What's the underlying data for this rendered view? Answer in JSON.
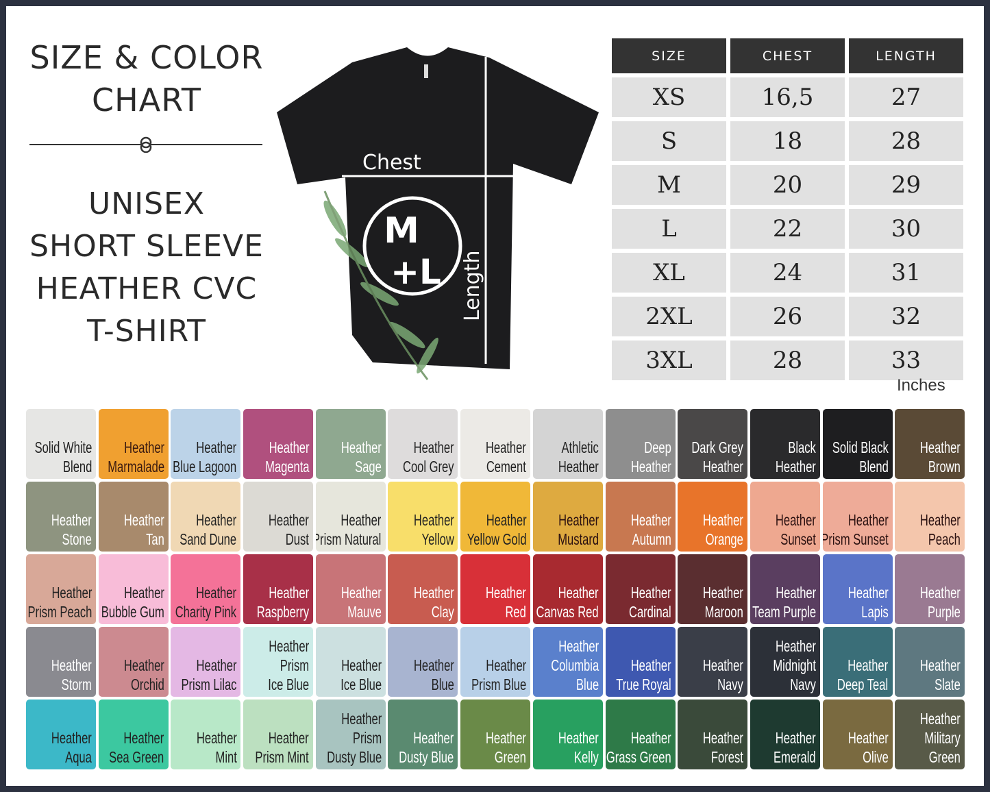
{
  "heading": {
    "line1": "SIZE & COLOR",
    "line2": "CHART",
    "product": [
      "UNISEX",
      "SHORT SLEEVE",
      "HEATHER CVC",
      "T-SHIRT"
    ]
  },
  "shirt": {
    "chest_label": "Chest",
    "length_label": "Length",
    "logo_top": "M",
    "logo_bottom": "+L"
  },
  "size_table": {
    "headers": [
      "SIZE",
      "CHEST",
      "LENGTH"
    ],
    "rows": [
      [
        "XS",
        "16,5",
        "27"
      ],
      [
        "S",
        "18",
        "28"
      ],
      [
        "M",
        "20",
        "29"
      ],
      [
        "L",
        "22",
        "30"
      ],
      [
        "XL",
        "24",
        "31"
      ],
      [
        "2XL",
        "26",
        "32"
      ],
      [
        "3XL",
        "28",
        "33"
      ]
    ],
    "units": "Inches"
  },
  "colors": [
    {
      "name": [
        "Solid White",
        "Blend"
      ],
      "hex": "#e6e6e4",
      "text": "#222"
    },
    {
      "name": [
        "Heather",
        "Marmalade"
      ],
      "hex": "#f0a030",
      "text": "#3a1a10"
    },
    {
      "name": [
        "Heather",
        "Blue Lagoon"
      ],
      "hex": "#bcd3e8",
      "text": "#222"
    },
    {
      "name": [
        "Heather",
        "Magenta"
      ],
      "hex": "#b0507e",
      "text": "#fff"
    },
    {
      "name": [
        "Heather",
        "Sage"
      ],
      "hex": "#8fa890",
      "text": "#fff"
    },
    {
      "name": [
        "Heather",
        "Cool Grey"
      ],
      "hex": "#dedcdc",
      "text": "#222"
    },
    {
      "name": [
        "Heather",
        "Cement"
      ],
      "hex": "#eceae6",
      "text": "#222"
    },
    {
      "name": [
        "Athletic",
        "Heather"
      ],
      "hex": "#d4d4d4",
      "text": "#222"
    },
    {
      "name": [
        "Deep",
        "Heather"
      ],
      "hex": "#8e8e8e",
      "text": "#fff"
    },
    {
      "name": [
        "Dark Grey",
        "Heather"
      ],
      "hex": "#4a4848",
      "text": "#fff"
    },
    {
      "name": [
        "Black",
        "Heather"
      ],
      "hex": "#2a2a2c",
      "text": "#fff"
    },
    {
      "name": [
        "Solid Black",
        "Blend"
      ],
      "hex": "#1e1e20",
      "text": "#fff"
    },
    {
      "name": [
        "Heather",
        "Brown"
      ],
      "hex": "#5a4a36",
      "text": "#fff"
    },
    {
      "name": [
        "Heather",
        "Stone"
      ],
      "hex": "#8e9480",
      "text": "#fff"
    },
    {
      "name": [
        "Heather",
        "Tan"
      ],
      "hex": "#a88a6c",
      "text": "#fff"
    },
    {
      "name": [
        "Heather",
        "Sand Dune"
      ],
      "hex": "#f0d8b4",
      "text": "#222"
    },
    {
      "name": [
        "Heather",
        "Dust"
      ],
      "hex": "#dcdad4",
      "text": "#222"
    },
    {
      "name": [
        "Heather",
        "Prism Natural"
      ],
      "hex": "#e6e6dc",
      "text": "#222"
    },
    {
      "name": [
        "Heather",
        "Yellow"
      ],
      "hex": "#f8de6a",
      "text": "#222"
    },
    {
      "name": [
        "Heather",
        "Yellow Gold"
      ],
      "hex": "#f0b838",
      "text": "#222"
    },
    {
      "name": [
        "Heather",
        "Mustard"
      ],
      "hex": "#deaa40",
      "text": "#2a1010"
    },
    {
      "name": [
        "Heather",
        "Autumn"
      ],
      "hex": "#c87850",
      "text": "#fff"
    },
    {
      "name": [
        "Heather",
        "Orange"
      ],
      "hex": "#e8742a",
      "text": "#fff"
    },
    {
      "name": [
        "Heather",
        "Sunset"
      ],
      "hex": "#eea890",
      "text": "#2a1010"
    },
    {
      "name": [
        "Heather",
        "Prism Sunset"
      ],
      "hex": "#eeab98",
      "text": "#2a1010"
    },
    {
      "name": [
        "Heather",
        "Peach"
      ],
      "hex": "#f4c6ac",
      "text": "#2a1010"
    },
    {
      "name": [
        "Heather",
        "Prism Peach"
      ],
      "hex": "#d8a898",
      "text": "#222"
    },
    {
      "name": [
        "Heather",
        "Bubble Gum"
      ],
      "hex": "#f8bcd8",
      "text": "#222"
    },
    {
      "name": [
        "Heather",
        "Charity Pink"
      ],
      "hex": "#f47298",
      "text": "#222"
    },
    {
      "name": [
        "Heather",
        "Raspberry"
      ],
      "hex": "#a83048",
      "text": "#fff"
    },
    {
      "name": [
        "Heather",
        "Mauve"
      ],
      "hex": "#c87478",
      "text": "#fff"
    },
    {
      "name": [
        "Heather",
        "Clay"
      ],
      "hex": "#c85c50",
      "text": "#fff"
    },
    {
      "name": [
        "Heather",
        "Red"
      ],
      "hex": "#d83038",
      "text": "#fff"
    },
    {
      "name": [
        "Heather",
        "Canvas Red"
      ],
      "hex": "#a82a30",
      "text": "#fff"
    },
    {
      "name": [
        "Heather",
        "Cardinal"
      ],
      "hex": "#7a2a30",
      "text": "#fff"
    },
    {
      "name": [
        "Heather",
        "Maroon"
      ],
      "hex": "#5a2e30",
      "text": "#fff"
    },
    {
      "name": [
        "Heather",
        "Team Purple"
      ],
      "hex": "#5a3e60",
      "text": "#fff"
    },
    {
      "name": [
        "Heather",
        "Lapis"
      ],
      "hex": "#5a74c8",
      "text": "#fff"
    },
    {
      "name": [
        "Heather",
        "Purple"
      ],
      "hex": "#9a7a92",
      "text": "#fff"
    },
    {
      "name": [
        "Heather",
        "Storm"
      ],
      "hex": "#8a8a90",
      "text": "#fff"
    },
    {
      "name": [
        "Heather",
        "Orchid"
      ],
      "hex": "#cc8a90",
      "text": "#222"
    },
    {
      "name": [
        "Heather",
        "Prism Lilac"
      ],
      "hex": "#e4b8e4",
      "text": "#222"
    },
    {
      "name": [
        "Heather",
        "Prism",
        "Ice Blue"
      ],
      "hex": "#ccece8",
      "text": "#222"
    },
    {
      "name": [
        "Heather",
        "Ice Blue"
      ],
      "hex": "#cce0e0",
      "text": "#222"
    },
    {
      "name": [
        "Heather",
        "Blue"
      ],
      "hex": "#a8b4d0",
      "text": "#222"
    },
    {
      "name": [
        "Heather",
        "Prism Blue"
      ],
      "hex": "#b8d0e8",
      "text": "#222"
    },
    {
      "name": [
        "Heather",
        "Columbia",
        "Blue"
      ],
      "hex": "#5a80cc",
      "text": "#fff"
    },
    {
      "name": [
        "Heather",
        "True Royal"
      ],
      "hex": "#3e58b0",
      "text": "#fff"
    },
    {
      "name": [
        "Heather",
        "Navy"
      ],
      "hex": "#3a3e48",
      "text": "#fff"
    },
    {
      "name": [
        "Heather",
        "Midnight",
        "Navy"
      ],
      "hex": "#2c3038",
      "text": "#fff"
    },
    {
      "name": [
        "Heather",
        "Deep Teal"
      ],
      "hex": "#3a6e78",
      "text": "#fff"
    },
    {
      "name": [
        "Heather",
        "Slate"
      ],
      "hex": "#5e7880",
      "text": "#fff"
    },
    {
      "name": [
        "Heather",
        "Aqua"
      ],
      "hex": "#3cb8c8",
      "text": "#222"
    },
    {
      "name": [
        "Heather",
        "Sea Green"
      ],
      "hex": "#3cc8a0",
      "text": "#222"
    },
    {
      "name": [
        "Heather",
        "Mint"
      ],
      "hex": "#b8e8c8",
      "text": "#222"
    },
    {
      "name": [
        "Heather",
        "Prism Mint"
      ],
      "hex": "#bce0c0",
      "text": "#222"
    },
    {
      "name": [
        "Heather",
        "Prism",
        "Dusty Blue"
      ],
      "hex": "#a8c4c0",
      "text": "#222"
    },
    {
      "name": [
        "Heather",
        "Dusty Blue"
      ],
      "hex": "#5a8a70",
      "text": "#fff"
    },
    {
      "name": [
        "Heather",
        "Green"
      ],
      "hex": "#6a8a48",
      "text": "#fff"
    },
    {
      "name": [
        "Heather",
        "Kelly"
      ],
      "hex": "#28a060",
      "text": "#fff"
    },
    {
      "name": [
        "Heather",
        "Grass Green"
      ],
      "hex": "#2e7a48",
      "text": "#fff"
    },
    {
      "name": [
        "Heather",
        "Forest"
      ],
      "hex": "#3a4a3a",
      "text": "#fff"
    },
    {
      "name": [
        "Heather",
        "Emerald"
      ],
      "hex": "#1e3a30",
      "text": "#fff"
    },
    {
      "name": [
        "Heather",
        "Olive"
      ],
      "hex": "#7a6a40",
      "text": "#fff"
    },
    {
      "name": [
        "Heather",
        "Military",
        "Green"
      ],
      "hex": "#585a48",
      "text": "#fff"
    }
  ]
}
